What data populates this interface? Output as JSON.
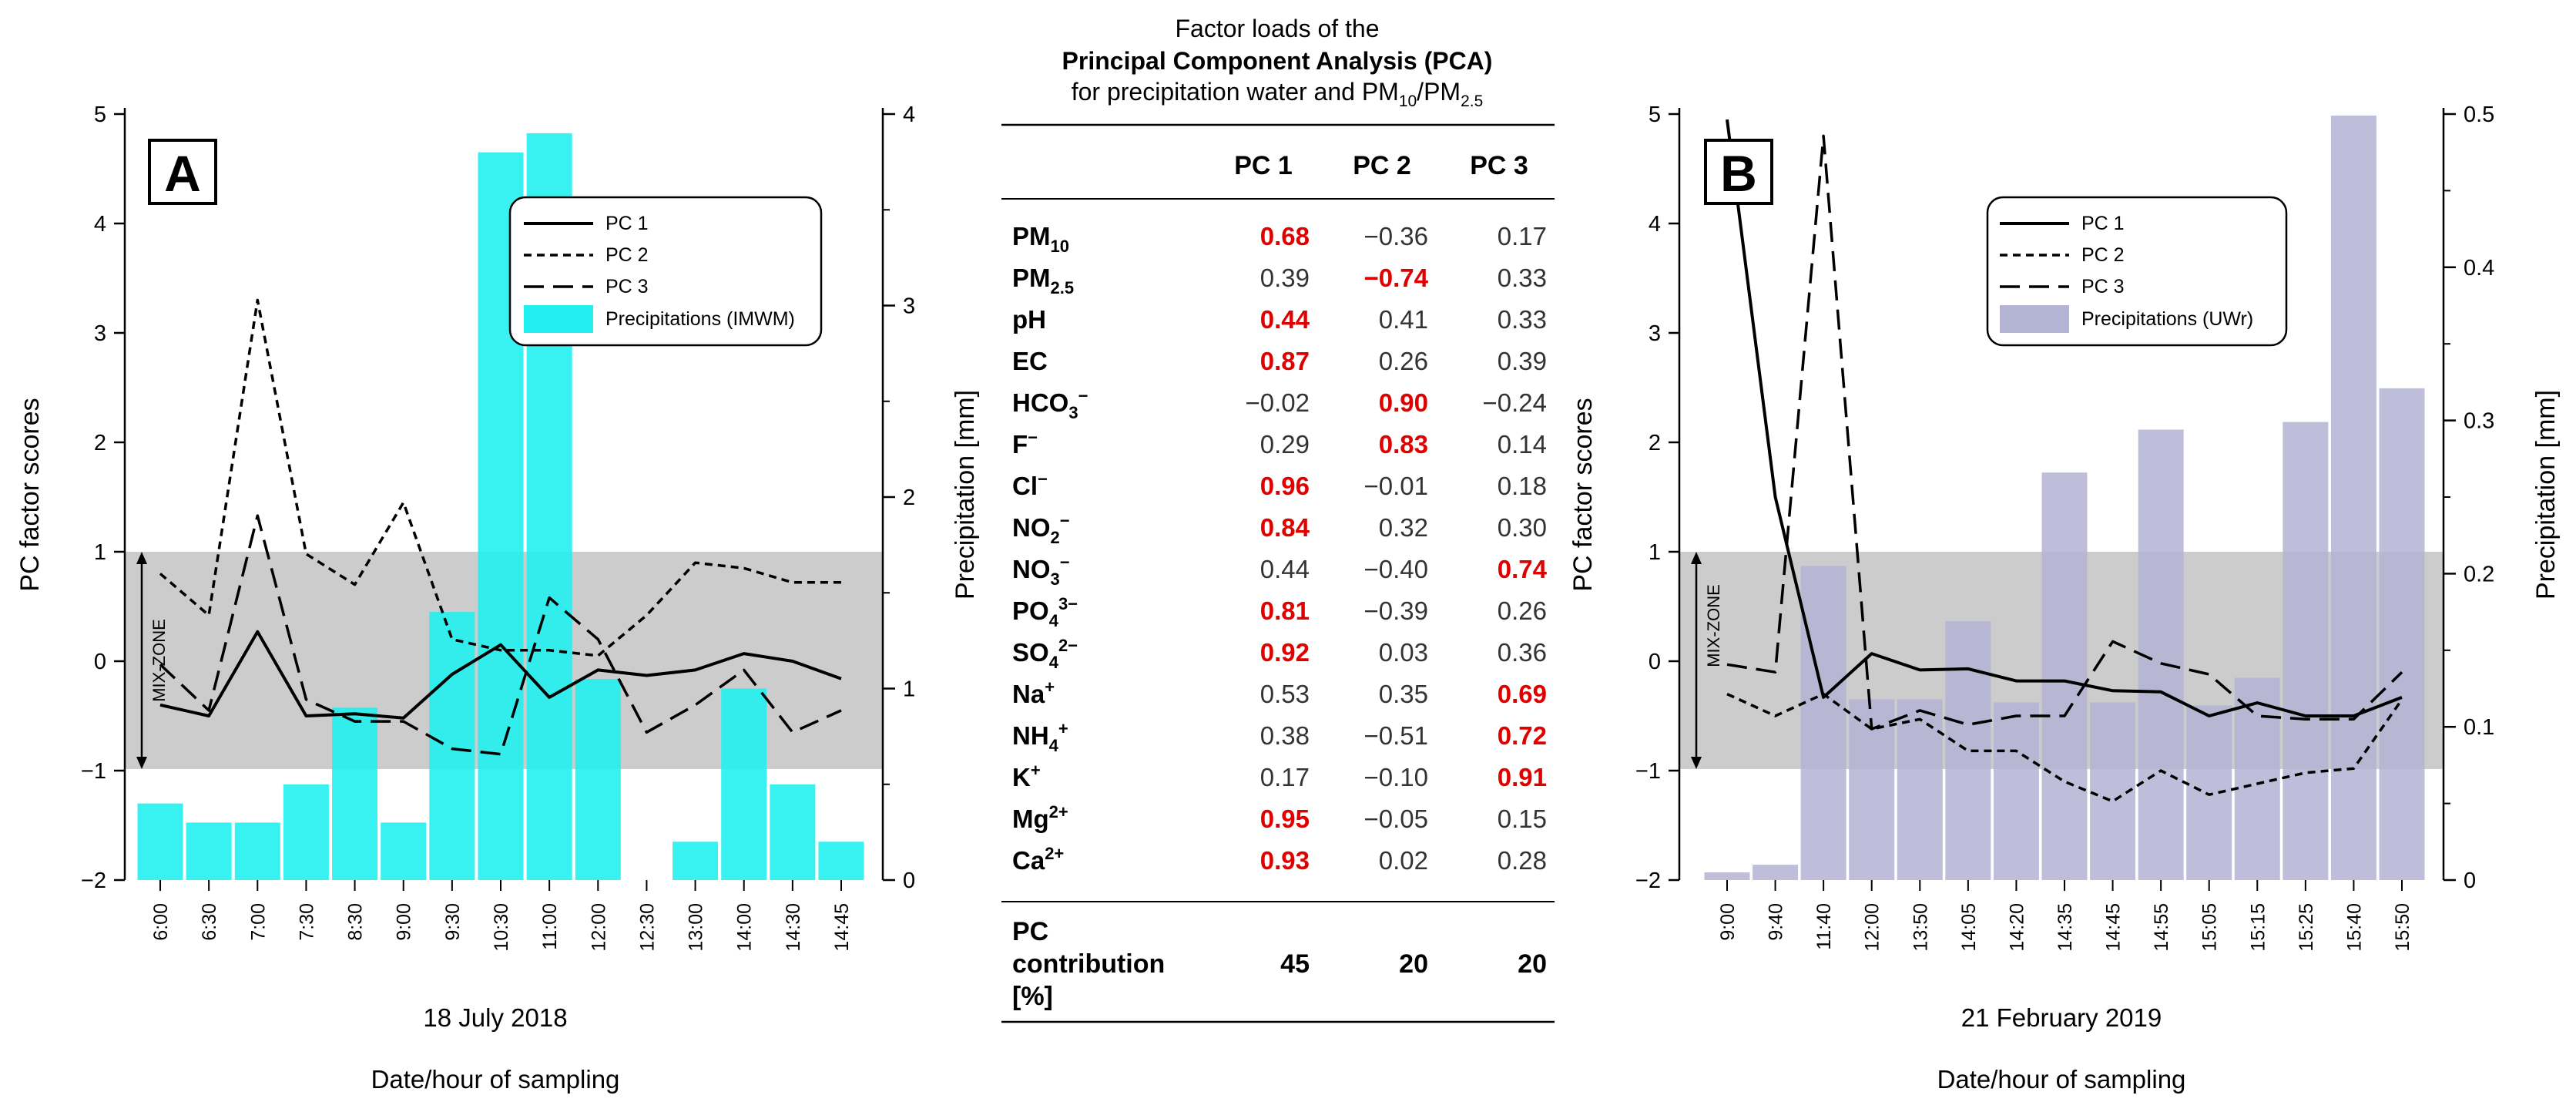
{
  "chart_data": [
    {
      "type": "line+bar",
      "panel_label": "A",
      "ylabel_left": "PC factor scores",
      "ylabel_right": "Precipitation [mm]",
      "xlabel_date": "18 July 2018",
      "xlabel": "Date/hour of sampling",
      "ylim_left": [
        -2,
        5
      ],
      "ylim_right": [
        0,
        4
      ],
      "yticks_left": [
        "5",
        "4",
        "3",
        "2",
        "1",
        "0",
        "−1",
        "−2"
      ],
      "yticks_right": [
        "4",
        "3",
        "2",
        "1",
        "0"
      ],
      "mix_zone_label": "MIX-ZONE",
      "mix_zone": [
        -1,
        1
      ],
      "categories": [
        "6:00",
        "6:30",
        "7:00",
        "7:30",
        "8:30",
        "9:00",
        "9:30",
        "10:30",
        "11:00",
        "12:00",
        "12:30",
        "13:00",
        "14:00",
        "14:30",
        "14:45"
      ],
      "series": [
        {
          "name": "PC 1",
          "values": [
            -0.4,
            -0.5,
            0.27,
            -0.5,
            -0.48,
            -0.52,
            -0.12,
            0.15,
            -0.33,
            -0.08,
            -0.13,
            -0.08,
            0.07,
            0.0,
            -0.16
          ]
        },
        {
          "name": "PC 2",
          "values": [
            0.8,
            0.42,
            3.3,
            0.98,
            0.7,
            1.45,
            0.2,
            0.1,
            0.1,
            0.05,
            0.42,
            0.9,
            0.85,
            0.72,
            0.72
          ]
        },
        {
          "name": "PC 3",
          "values": [
            -0.03,
            -0.45,
            1.33,
            -0.35,
            -0.55,
            -0.55,
            -0.8,
            -0.85,
            0.58,
            0.2,
            -0.65,
            -0.4,
            -0.08,
            -0.65,
            -0.45
          ]
        }
      ],
      "precip_name": "Precipitations (IMWM)",
      "precip_color": "#22f0f0",
      "precipitation": [
        0.4,
        0.3,
        0.3,
        0.5,
        0.9,
        0.3,
        1.4,
        3.8,
        3.9,
        1.05,
        0.0,
        0.2,
        1.0,
        0.5,
        0.2
      ]
    },
    {
      "type": "line+bar",
      "panel_label": "B",
      "ylabel_left": "PC factor scores",
      "ylabel_right": "Precipitation [mm]",
      "xlabel_date": "21 February 2019",
      "xlabel": "Date/hour of sampling",
      "ylim_left": [
        -2,
        5
      ],
      "ylim_right": [
        0,
        0.5
      ],
      "yticks_left": [
        "5",
        "4",
        "3",
        "2",
        "1",
        "0",
        "−1",
        "−2"
      ],
      "yticks_right": [
        "0.5",
        "0.4",
        "0.3",
        "0.2",
        "0.1",
        "0"
      ],
      "mix_zone_label": "MIX-ZONE",
      "mix_zone": [
        -1,
        1
      ],
      "categories": [
        "9:00",
        "9:40",
        "11:40",
        "12:00",
        "13:50",
        "14:05",
        "14:20",
        "14:35",
        "14:45",
        "14:55",
        "15:05",
        "15:15",
        "15:25",
        "15:40",
        "15:50"
      ],
      "series": [
        {
          "name": "PC 1",
          "values": [
            4.95,
            1.5,
            -0.33,
            0.07,
            -0.08,
            -0.07,
            -0.18,
            -0.18,
            -0.27,
            -0.28,
            -0.5,
            -0.38,
            -0.5,
            -0.5,
            -0.33
          ]
        },
        {
          "name": "PC 2",
          "values": [
            -0.3,
            -0.5,
            -0.3,
            -0.62,
            -0.53,
            -0.82,
            -0.82,
            -1.1,
            -1.28,
            -1.0,
            -1.22,
            -1.12,
            -1.02,
            -0.98,
            -0.35
          ]
        },
        {
          "name": "PC 3",
          "values": [
            -0.03,
            -0.1,
            4.8,
            -0.62,
            -0.45,
            -0.58,
            -0.5,
            -0.5,
            0.18,
            -0.02,
            -0.12,
            -0.5,
            -0.53,
            -0.53,
            -0.1
          ]
        }
      ],
      "precip_name": "Precipitations (UWr)",
      "precip_color": "#b3b3d3",
      "precipitation": [
        0.005,
        0.01,
        0.205,
        0.118,
        0.118,
        0.169,
        0.116,
        0.266,
        0.116,
        0.294,
        0.114,
        0.132,
        0.299,
        0.499,
        0.321
      ]
    }
  ],
  "table": {
    "title_line1": "Factor loads of the",
    "title_line2": "Principal Component Analysis (PCA)",
    "title_line3_a": "for precipitation water and PM",
    "title_sub_1": "10",
    "title_line3_b": "/PM",
    "title_sub_2": "2.5",
    "headers": [
      "PC 1",
      "PC 2",
      "PC 3"
    ],
    "highlight_color": "#e00000",
    "rows": [
      {
        "label": "PM",
        "sub": "10",
        "sup": "",
        "values": [
          "0.68",
          "−0.36",
          "0.17"
        ],
        "bold": [
          true,
          false,
          false
        ]
      },
      {
        "label": "PM",
        "sub": "2.5",
        "sup": "",
        "values": [
          "0.39",
          "−0.74",
          "0.33"
        ],
        "bold": [
          false,
          true,
          false
        ]
      },
      {
        "label": "pH",
        "sub": "",
        "sup": "",
        "values": [
          "0.44",
          "0.41",
          "0.33"
        ],
        "bold": [
          true,
          false,
          false
        ]
      },
      {
        "label": "EC",
        "sub": "",
        "sup": "",
        "values": [
          "0.87",
          "0.26",
          "0.39"
        ],
        "bold": [
          true,
          false,
          false
        ]
      },
      {
        "label": "HCO",
        "sub": "3",
        "sup": "−",
        "values": [
          "−0.02",
          "0.90",
          "−0.24"
        ],
        "bold": [
          false,
          true,
          false
        ]
      },
      {
        "label": "F",
        "sub": "",
        "sup": "−",
        "values": [
          "0.29",
          "0.83",
          "0.14"
        ],
        "bold": [
          false,
          true,
          false
        ]
      },
      {
        "label": "Cl",
        "sub": "",
        "sup": "−",
        "values": [
          "0.96",
          "−0.01",
          "0.18"
        ],
        "bold": [
          true,
          false,
          false
        ]
      },
      {
        "label": "NO",
        "sub": "2",
        "sup": "−",
        "values": [
          "0.84",
          "0.32",
          "0.30"
        ],
        "bold": [
          true,
          false,
          false
        ]
      },
      {
        "label": "NO",
        "sub": "3",
        "sup": "−",
        "values": [
          "0.44",
          "−0.40",
          "0.74"
        ],
        "bold": [
          false,
          false,
          true
        ]
      },
      {
        "label": "PO",
        "sub": "4",
        "sup": "3−",
        "values": [
          "0.81",
          "−0.39",
          "0.26"
        ],
        "bold": [
          true,
          false,
          false
        ]
      },
      {
        "label": "SO",
        "sub": "4",
        "sup": "2−",
        "values": [
          "0.92",
          "0.03",
          "0.36"
        ],
        "bold": [
          true,
          false,
          false
        ]
      },
      {
        "label": "Na",
        "sub": "",
        "sup": "+",
        "values": [
          "0.53",
          "0.35",
          "0.69"
        ],
        "bold": [
          false,
          false,
          true
        ]
      },
      {
        "label": "NH",
        "sub": "4",
        "sup": "+",
        "values": [
          "0.38",
          "−0.51",
          "0.72"
        ],
        "bold": [
          false,
          false,
          true
        ]
      },
      {
        "label": "K",
        "sub": "",
        "sup": "+",
        "values": [
          "0.17",
          "−0.10",
          "0.91"
        ],
        "bold": [
          false,
          false,
          true
        ]
      },
      {
        "label": "Mg",
        "sub": "",
        "sup": "2+",
        "values": [
          "0.95",
          "−0.05",
          "0.15"
        ],
        "bold": [
          true,
          false,
          false
        ]
      },
      {
        "label": "Ca",
        "sub": "",
        "sup": "2+",
        "values": [
          "0.93",
          "0.02",
          "0.28"
        ],
        "bold": [
          true,
          false,
          false
        ]
      }
    ],
    "contribution_label": [
      "PC",
      "contribution",
      "[%]"
    ],
    "contribution_values": [
      "45",
      "20",
      "20"
    ]
  }
}
